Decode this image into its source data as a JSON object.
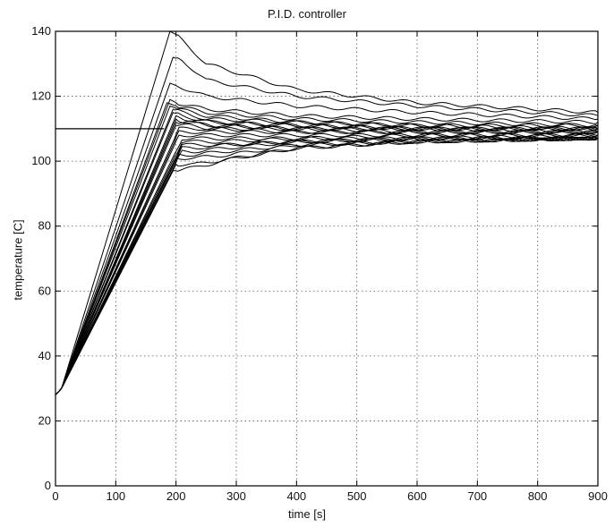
{
  "chart_data": {
    "type": "line",
    "title": "P.I.D. controller",
    "xlabel": "time [s]",
    "ylabel": "temperature [C]",
    "xlim": [
      0,
      900
    ],
    "ylim": [
      0,
      140
    ],
    "xticks": [
      0,
      100,
      200,
      300,
      400,
      500,
      600,
      700,
      800,
      900
    ],
    "yticks": [
      0,
      20,
      40,
      60,
      80,
      100,
      120,
      140
    ],
    "grid": true,
    "legend": "none",
    "setpoint": 110,
    "line_color": "#000000",
    "series_note_count": 24,
    "series": [
      {
        "x": [
          0,
          10,
          190,
          200,
          250,
          400,
          600,
          900
        ],
        "values": [
          28,
          30,
          140,
          139,
          130,
          122,
          118,
          115
        ]
      },
      {
        "x": [
          0,
          10,
          195,
          210,
          250,
          400,
          600,
          900
        ],
        "values": [
          28,
          30,
          132,
          131,
          125,
          120,
          117,
          114
        ]
      },
      {
        "x": [
          0,
          10,
          190,
          205,
          250,
          400,
          600,
          900
        ],
        "values": [
          28,
          30,
          124,
          123,
          120,
          117,
          115,
          113
        ]
      },
      {
        "x": [
          0,
          10,
          190,
          200,
          250,
          400,
          600,
          900
        ],
        "values": [
          28,
          30,
          119,
          118,
          116,
          114,
          113,
          112
        ]
      },
      {
        "x": [
          0,
          10,
          185,
          200,
          250,
          400,
          600,
          900
        ],
        "values": [
          28,
          30,
          118,
          117,
          115,
          113,
          112,
          111
        ]
      },
      {
        "x": [
          0,
          10,
          190,
          205,
          250,
          400,
          600,
          900
        ],
        "values": [
          28,
          30,
          117,
          116,
          114,
          112,
          111,
          111
        ]
      },
      {
        "x": [
          0,
          10,
          195,
          210,
          250,
          400,
          600,
          900
        ],
        "values": [
          28,
          30,
          116,
          115,
          113,
          112,
          111,
          110
        ]
      },
      {
        "x": [
          0,
          10,
          195,
          210,
          260,
          400,
          600,
          900
        ],
        "values": [
          28,
          30,
          115,
          114,
          112,
          111,
          110,
          110
        ]
      },
      {
        "x": [
          0,
          10,
          200,
          215,
          260,
          400,
          600,
          900
        ],
        "values": [
          28,
          30,
          114,
          113,
          112,
          111,
          110,
          110
        ]
      },
      {
        "x": [
          0,
          10,
          200,
          215,
          260,
          400,
          600,
          900
        ],
        "values": [
          28,
          30,
          113,
          112,
          111,
          110,
          110,
          110
        ]
      },
      {
        "x": [
          0,
          10,
          200,
          220,
          260,
          400,
          600,
          900
        ],
        "values": [
          28,
          30,
          112,
          112,
          111,
          110,
          110,
          109
        ]
      },
      {
        "x": [
          0,
          10,
          200,
          220,
          260,
          400,
          600,
          900
        ],
        "values": [
          28,
          30,
          111,
          111,
          110,
          110,
          109,
          109
        ]
      },
      {
        "x": [
          0,
          10,
          205,
          220,
          260,
          400,
          600,
          900
        ],
        "values": [
          28,
          30,
          110,
          110,
          110,
          109,
          109,
          109
        ]
      },
      {
        "x": [
          0,
          10,
          205,
          225,
          270,
          400,
          600,
          900
        ],
        "values": [
          28,
          30,
          109,
          109,
          109,
          109,
          109,
          109
        ]
      },
      {
        "x": [
          0,
          10,
          205,
          225,
          270,
          400,
          600,
          900
        ],
        "values": [
          28,
          30,
          108,
          108,
          108,
          108,
          108,
          108
        ]
      },
      {
        "x": [
          0,
          10,
          210,
          225,
          270,
          400,
          600,
          900
        ],
        "values": [
          28,
          30,
          107,
          107,
          107,
          107,
          108,
          108
        ]
      },
      {
        "x": [
          0,
          10,
          210,
          230,
          270,
          400,
          600,
          900
        ],
        "values": [
          28,
          30,
          106,
          106,
          106,
          107,
          107,
          108
        ]
      },
      {
        "x": [
          0,
          10,
          210,
          230,
          280,
          400,
          600,
          900
        ],
        "values": [
          28,
          30,
          105,
          105,
          105,
          106,
          107,
          107
        ]
      },
      {
        "x": [
          0,
          10,
          210,
          230,
          280,
          400,
          600,
          900
        ],
        "values": [
          28,
          30,
          104,
          104,
          105,
          106,
          107,
          107
        ]
      },
      {
        "x": [
          0,
          10,
          210,
          230,
          280,
          400,
          600,
          900
        ],
        "values": [
          28,
          30,
          103,
          103,
          104,
          106,
          107,
          107
        ]
      },
      {
        "x": [
          0,
          10,
          205,
          230,
          280,
          400,
          600,
          900
        ],
        "values": [
          28,
          30,
          102,
          102,
          103,
          105,
          106,
          107
        ]
      },
      {
        "x": [
          0,
          10,
          200,
          230,
          290,
          400,
          600,
          900
        ],
        "values": [
          28,
          30,
          101,
          101,
          102,
          105,
          106,
          107
        ]
      },
      {
        "x": [
          0,
          10,
          200,
          230,
          300,
          400,
          600,
          900
        ],
        "values": [
          28,
          30,
          99,
          99,
          101,
          104,
          106,
          107
        ]
      },
      {
        "x": [
          0,
          10,
          195,
          230,
          300,
          400,
          600,
          900
        ],
        "values": [
          28,
          30,
          97,
          98,
          101,
          104,
          106,
          107
        ]
      }
    ]
  }
}
